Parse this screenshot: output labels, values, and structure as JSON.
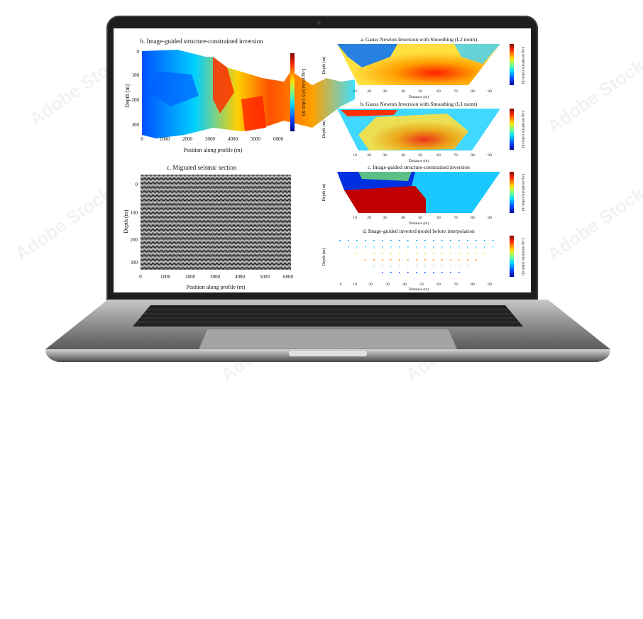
{
  "watermark": {
    "text": "Adobe Stock"
  },
  "screen": {
    "panels": [
      {
        "id": "b",
        "title": "b. Image-guided structure-constrained inversion",
        "xlabel": "Position along profile (m)",
        "ylabel": "Depth (m)",
        "colorbar_label": "Log resistivity (ohm m)",
        "xticks": [
          "0",
          "1000",
          "2000",
          "3000",
          "4000",
          "5000",
          "6000"
        ],
        "yticks": [
          "0",
          "100",
          "200",
          "300"
        ],
        "cticks": [
          "3.0",
          "2.5",
          "2.0",
          "1.5"
        ]
      },
      {
        "id": "c",
        "title": "c. Migrated seismic section",
        "xlabel": "Position along profile (m)",
        "ylabel": "Depth (m)",
        "xticks": [
          "0",
          "1000",
          "2000",
          "3000",
          "4000",
          "5000",
          "6000"
        ],
        "yticks": [
          "0",
          "100",
          "200",
          "300"
        ]
      },
      {
        "id": "a1",
        "title": "a. Gauss Newton Inversion with Smoothing (L2 norm)",
        "xlabel": "Distance (m)",
        "ylabel": "Depth (m)",
        "colorbar_label": "Log resistivity (ohm m)",
        "xticks": [
          "10",
          "20",
          "30",
          "40",
          "50",
          "60",
          "70",
          "80",
          "90"
        ],
        "yticks": [
          "5",
          "10",
          "15",
          "20"
        ]
      },
      {
        "id": "b1",
        "title": "b. Gauss Newton Inversion with Smoothing (L1 norm)",
        "xlabel": "Distance (m)",
        "ylabel": "Depth (m)",
        "colorbar_label": "Log resistivity (ohm m)",
        "xticks": [
          "10",
          "20",
          "30",
          "40",
          "50",
          "60",
          "70",
          "80",
          "90"
        ],
        "yticks": [
          "5",
          "10",
          "15",
          "20"
        ]
      },
      {
        "id": "c1",
        "title": "c. Image-guided structure-constrained inversion",
        "xlabel": "Distance (m)",
        "ylabel": "Depth (m)",
        "colorbar_label": "Log resistivity (ohm m)",
        "xticks": [
          "10",
          "20",
          "30",
          "40",
          "50",
          "60",
          "70",
          "80",
          "90"
        ],
        "yticks": [
          "5",
          "10",
          "15"
        ]
      },
      {
        "id": "d1",
        "title": "d. Image-guided inverted model before interpolation",
        "xlabel": "Distance (m)",
        "ylabel": "Depth (m)",
        "colorbar_label": "Log resistivity (ohm m)",
        "xticks": [
          "0",
          "10",
          "20",
          "30",
          "40",
          "50",
          "60",
          "70",
          "80",
          "90"
        ],
        "yticks": [
          "5",
          "10",
          "15",
          "20"
        ]
      }
    ]
  },
  "colors": {
    "lid": "#1d1d1f",
    "body": "#9a9a9c",
    "keyboard": "#2a2a2c"
  }
}
